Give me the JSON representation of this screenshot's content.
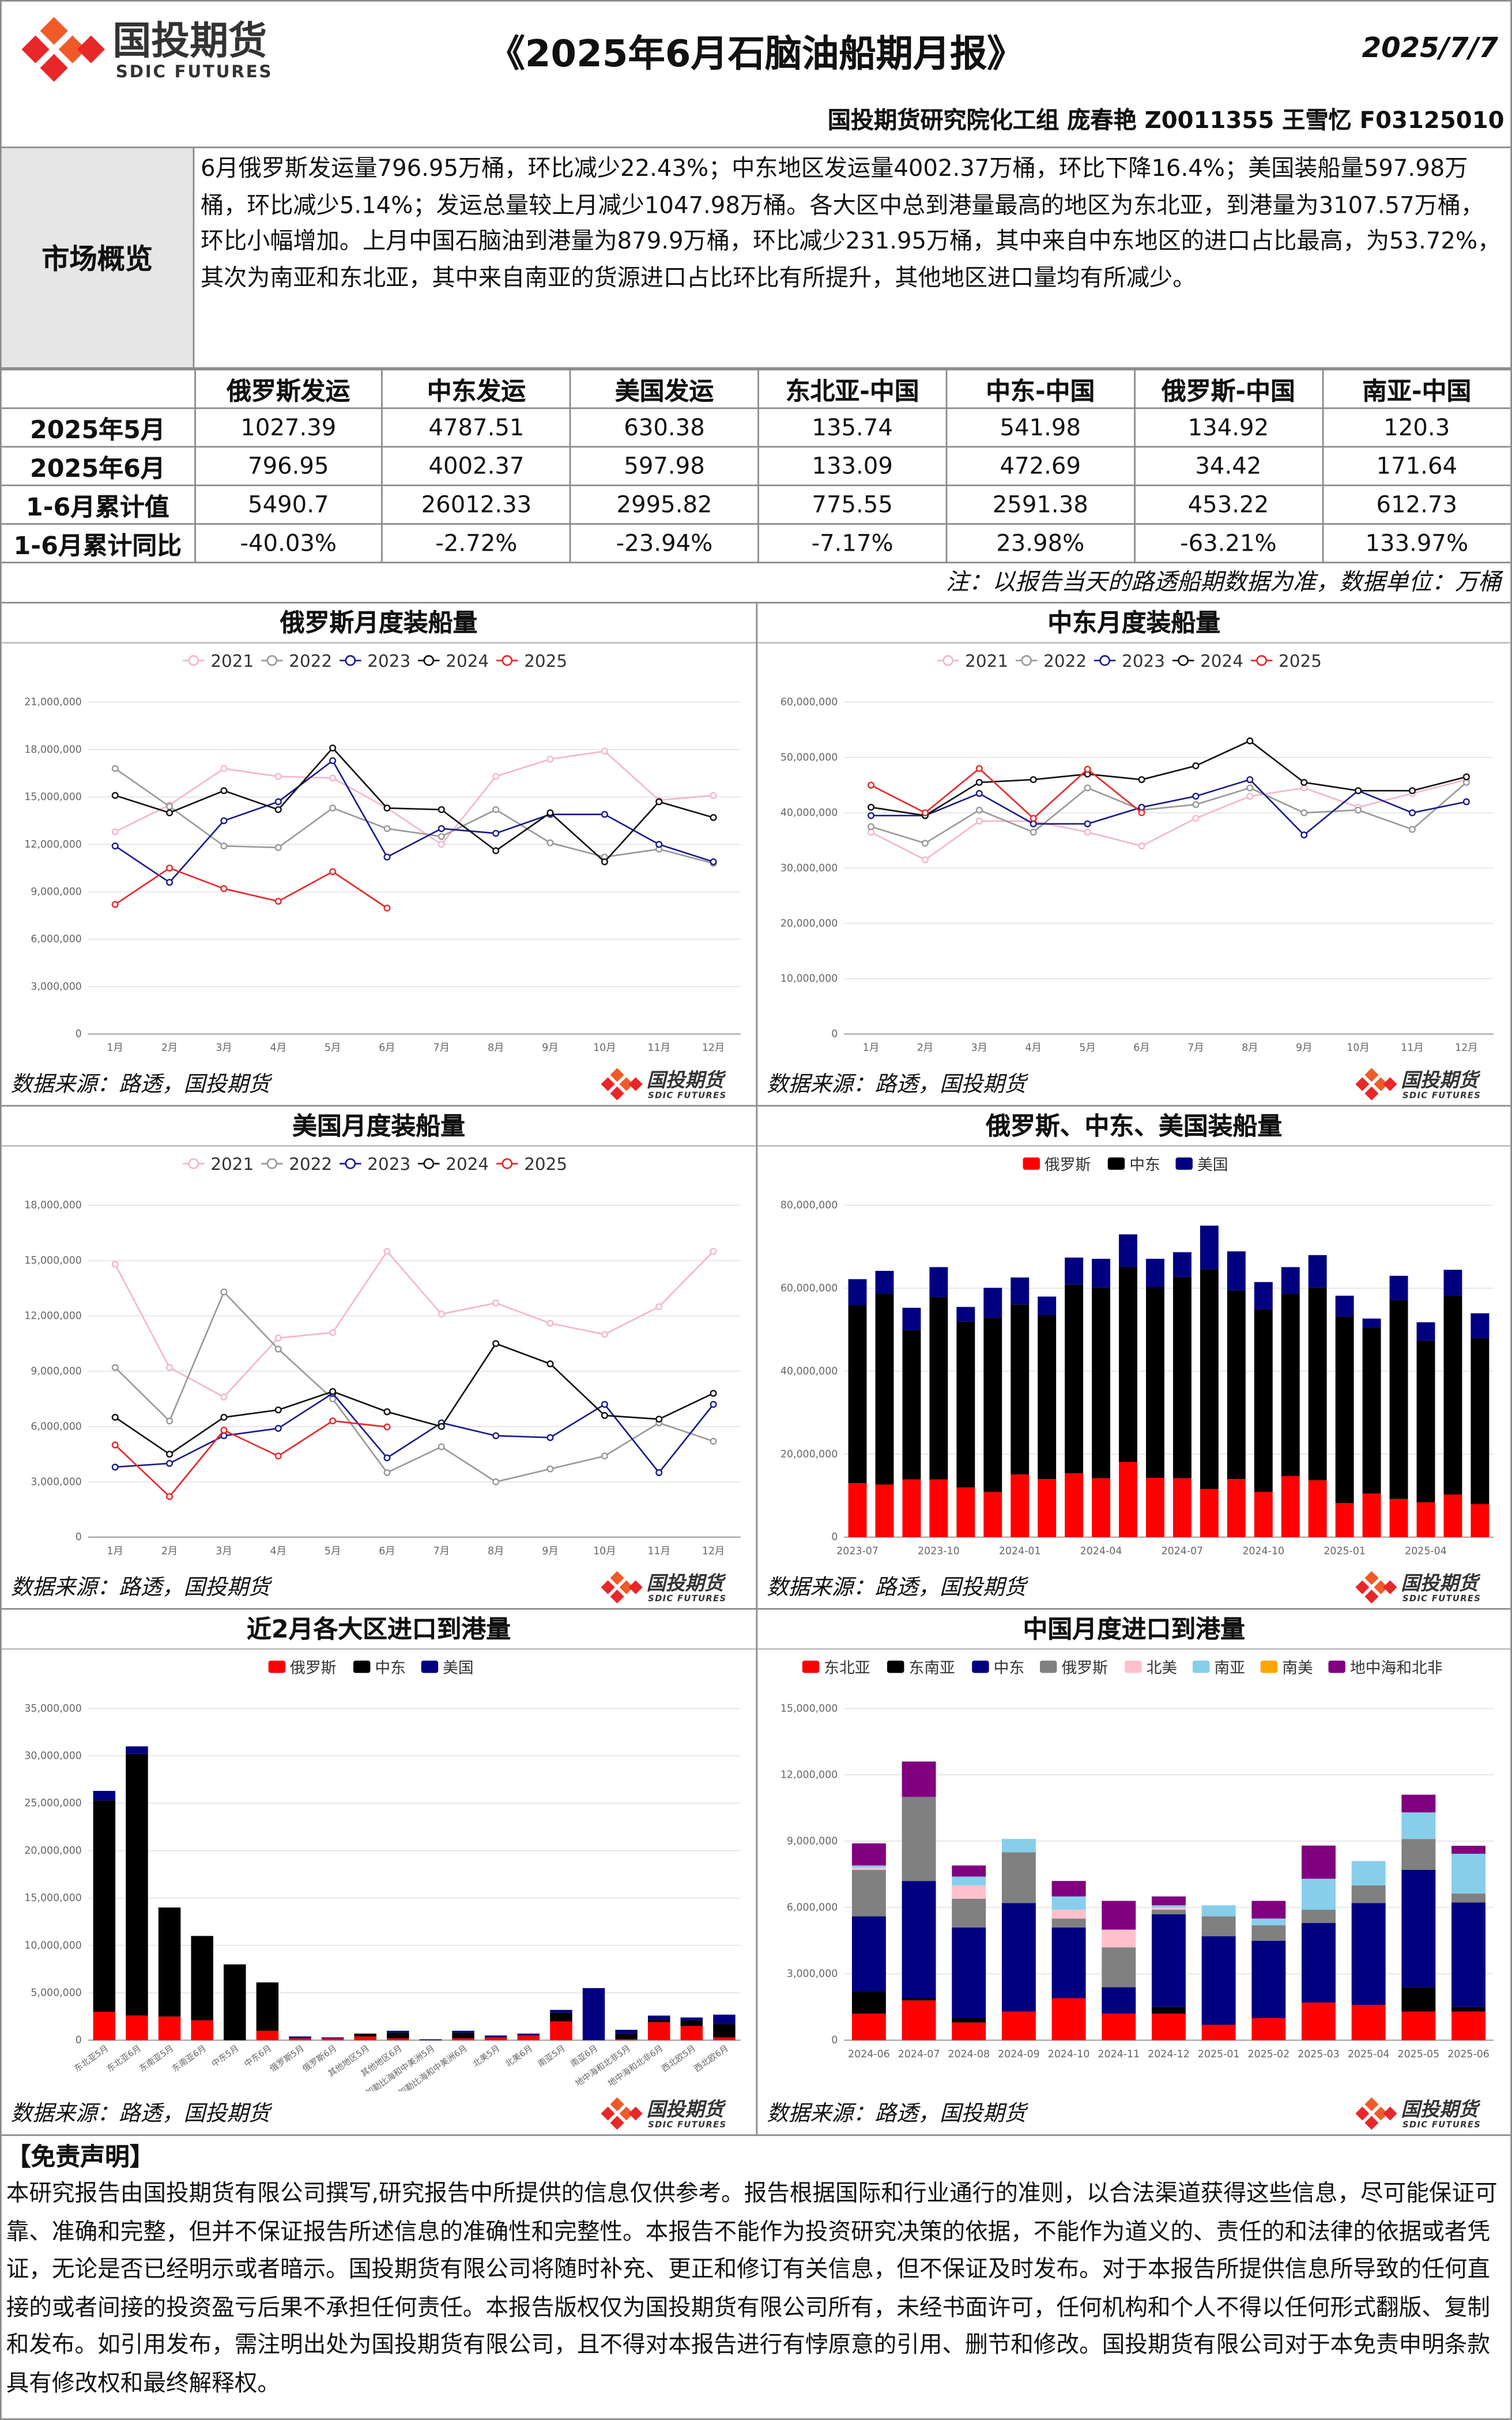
{
  "header": {
    "title": "《2025年6月石脑油船期月报》",
    "date": "2025/7/7",
    "author": "国投期货研究院化工组 庞春艳 Z0011355 王雪忆 F03125010"
  },
  "logo": {
    "name": "国投期货",
    "en": "SDIC FUTURES"
  },
  "summary": {
    "label": "市场概览",
    "text": "6月俄罗斯发运量796.95万桶，环比减少22.43%；中东地区发运量4002.37万桶，环比下降16.4%；美国装船量597.98万桶，环比减少5.14%；发运总量较上月减少1047.98万桶。各大区中总到港量最高的地区为东北亚，到港量为3107.57万桶，环比小幅增加。上月中国石脑油到港量为879.9万桶，环比减少231.95万桶，其中来自中东地区的进口占比最高，为53.72%，其次为南亚和东北亚，其中来自南亚的货源进口占比环比有所提升，其他地区进口量均有所减少。"
  },
  "table": {
    "columns": [
      "俄罗斯发运",
      "中东发运",
      "美国发运",
      "东北亚-中国",
      "中东-中国",
      "俄罗斯-中国",
      "南亚-中国"
    ],
    "rows": [
      {
        "label": "2025年5月",
        "cells": [
          "1027.39",
          "4787.51",
          "630.38",
          "135.74",
          "541.98",
          "134.92",
          "120.3"
        ]
      },
      {
        "label": "2025年6月",
        "cells": [
          "796.95",
          "4002.37",
          "597.98",
          "133.09",
          "472.69",
          "34.42",
          "171.64"
        ]
      },
      {
        "label": "1-6月累计值",
        "cells": [
          "5490.7",
          "26012.33",
          "2995.82",
          "775.55",
          "2591.38",
          "453.22",
          "612.73"
        ]
      },
      {
        "label": "1-6月累计同比",
        "cells": [
          "-40.03%",
          "-2.72%",
          "-23.94%",
          "-7.17%",
          "23.98%",
          "-63.21%",
          "133.97%"
        ]
      }
    ]
  },
  "note": "注：以报告当天的路透船期数据为准，数据单位：万桶",
  "chart_data": [
    {
      "type": "line",
      "title": "俄罗斯月度装船量",
      "source": "数据来源：路透，国投期货",
      "grid": true,
      "categories": [
        "1月",
        "2月",
        "3月",
        "4月",
        "5月",
        "6月",
        "7月",
        "8月",
        "9月",
        "10月",
        "11月",
        "12月"
      ],
      "ylim": [
        0,
        21000000
      ],
      "yticks": [
        0,
        {
          "value": 3000000,
          "label": "3,000,000"
        },
        {
          "value": 6000000,
          "label": "6,000,000"
        },
        {
          "value": 9000000,
          "label": "9,000,000"
        },
        {
          "value": 12000000,
          "label": "12,000,000"
        },
        {
          "value": 15000000,
          "label": "15,000,000"
        },
        {
          "value": 18000000,
          "label": "18,000,000"
        },
        {
          "value": 21000000,
          "label": "21,000,000"
        }
      ],
      "series": [
        {
          "name": "2021",
          "color": "#f4b6c8",
          "values": [
            12800000,
            14500000,
            16800000,
            16300000,
            16200000,
            14300000,
            12000000,
            16300000,
            17400000,
            17900000,
            14800000,
            15100000
          ]
        },
        {
          "name": "2022",
          "color": "#999999",
          "values": [
            16800000,
            14400000,
            11900000,
            11800000,
            14300000,
            13000000,
            12500000,
            14200000,
            12100000,
            11200000,
            11700000,
            10800000
          ]
        },
        {
          "name": "2023",
          "color": "#1a1a8c",
          "values": [
            11900000,
            9600000,
            13500000,
            14700000,
            17300000,
            11200000,
            13000000,
            12700000,
            13900000,
            13900000,
            12000000,
            10900000
          ]
        },
        {
          "name": "2024",
          "color": "#111111",
          "values": [
            15100000,
            14000000,
            15400000,
            14200000,
            18100000,
            14300000,
            14200000,
            11600000,
            14000000,
            10900000,
            14700000,
            13700000
          ]
        },
        {
          "name": "2025",
          "color": "#e8272a",
          "values": [
            8200000,
            10500000,
            9200000,
            8400000,
            10273900,
            7969500,
            null,
            null,
            null,
            null,
            null,
            null
          ]
        }
      ]
    },
    {
      "type": "line",
      "title": "中东月度装船量",
      "source": "数据来源：路透，国投期货",
      "grid": true,
      "categories": [
        "1月",
        "2月",
        "3月",
        "4月",
        "5月",
        "6月",
        "7月",
        "8月",
        "9月",
        "10月",
        "11月",
        "12月"
      ],
      "ylim": [
        0,
        60000000
      ],
      "yticks": [
        0,
        {
          "value": 10000000,
          "label": "10,000,000"
        },
        {
          "value": 20000000,
          "label": "20,000,000"
        },
        {
          "value": 30000000,
          "label": "30,000,000"
        },
        {
          "value": 40000000,
          "label": "40,000,000"
        },
        {
          "value": 50000000,
          "label": "50,000,000"
        },
        {
          "value": 60000000,
          "label": "60,000,000"
        }
      ],
      "series": [
        {
          "name": "2021",
          "color": "#f4b6c8",
          "values": [
            36500000,
            31500000,
            38500000,
            38500000,
            36500000,
            34000000,
            39000000,
            43000000,
            44500000,
            41000000,
            43500000,
            46000000
          ]
        },
        {
          "name": "2022",
          "color": "#999999",
          "values": [
            37500000,
            34500000,
            40500000,
            36500000,
            44500000,
            40500000,
            41500000,
            44500000,
            40000000,
            40500000,
            37000000,
            45500000
          ]
        },
        {
          "name": "2023",
          "color": "#1a1a8c",
          "values": [
            39500000,
            39500000,
            43500000,
            38000000,
            38000000,
            41000000,
            43000000,
            46000000,
            36000000,
            44000000,
            40000000,
            42000000
          ]
        },
        {
          "name": "2024",
          "color": "#111111",
          "values": [
            41000000,
            39500000,
            45500000,
            46000000,
            47000000,
            46000000,
            48500000,
            53000000,
            45500000,
            44000000,
            44000000,
            46500000
          ]
        },
        {
          "name": "2025",
          "color": "#e8272a",
          "values": [
            45000000,
            40000000,
            48000000,
            39000000,
            47875100,
            40023700,
            null,
            null,
            null,
            null,
            null,
            null
          ]
        }
      ]
    },
    {
      "type": "line",
      "title": "美国月度装船量",
      "source": "数据来源：路透，国投期货",
      "grid": true,
      "categories": [
        "1月",
        "2月",
        "3月",
        "4月",
        "5月",
        "6月",
        "7月",
        "8月",
        "9月",
        "10月",
        "11月",
        "12月"
      ],
      "ylim": [
        0,
        18000000
      ],
      "yticks": [
        0,
        {
          "value": 3000000,
          "label": "3,000,000"
        },
        {
          "value": 6000000,
          "label": "6,000,000"
        },
        {
          "value": 9000000,
          "label": "9,000,000"
        },
        {
          "value": 12000000,
          "label": "12,000,000"
        },
        {
          "value": 15000000,
          "label": "15,000,000"
        },
        {
          "value": 18000000,
          "label": "18,000,000"
        }
      ],
      "series": [
        {
          "name": "2021",
          "color": "#f4b6c8",
          "values": [
            14800000,
            9200000,
            7600000,
            10800000,
            11100000,
            15500000,
            12100000,
            12700000,
            11600000,
            11000000,
            12500000,
            15500000
          ]
        },
        {
          "name": "2022",
          "color": "#999999",
          "values": [
            9200000,
            6300000,
            13300000,
            10200000,
            7500000,
            3500000,
            4900000,
            3000000,
            3700000,
            4400000,
            6200000,
            5200000
          ]
        },
        {
          "name": "2023",
          "color": "#1a1a8c",
          "values": [
            3800000,
            4000000,
            5500000,
            5900000,
            7800000,
            4300000,
            6200000,
            5500000,
            5400000,
            7200000,
            3500000,
            7200000
          ]
        },
        {
          "name": "2024",
          "color": "#111111",
          "values": [
            6500000,
            4500000,
            6500000,
            6900000,
            7900000,
            6800000,
            6000000,
            10500000,
            9400000,
            6600000,
            6400000,
            7800000
          ]
        },
        {
          "name": "2025",
          "color": "#e8272a",
          "values": [
            5000000,
            2200000,
            5800000,
            4400000,
            6303800,
            5979800,
            null,
            null,
            null,
            null,
            null,
            null
          ]
        }
      ]
    },
    {
      "type": "bar",
      "title": "俄罗斯、中东、美国装船量",
      "source": "数据来源：路透，国投期货",
      "grid": true,
      "stacked": true,
      "categories": [
        "2023-07",
        null,
        null,
        "2023-10",
        null,
        null,
        "2024-01",
        null,
        null,
        "2024-04",
        null,
        null,
        "2024-07",
        null,
        null,
        "2024-10",
        null,
        null,
        "2025-01",
        null,
        null,
        "2025-04",
        null,
        null
      ],
      "ylim": [
        0,
        80000000
      ],
      "yticks": [
        0,
        {
          "value": 20000000,
          "label": "20,000,000"
        },
        {
          "value": 40000000,
          "label": "40,000,000"
        },
        {
          "value": 60000000,
          "label": "60,000,000"
        },
        {
          "value": 80000000,
          "label": "80,000,000"
        }
      ],
      "series": [
        {
          "name": "俄罗斯",
          "color": "#ff0000",
          "values": [
            13000000,
            12700000,
            13900000,
            13900000,
            12000000,
            10900000,
            15100000,
            14000000,
            15400000,
            14200000,
            18100000,
            14300000,
            14200000,
            11600000,
            14000000,
            10900000,
            14700000,
            13700000,
            8200000,
            10500000,
            9200000,
            8400000,
            10273900,
            7969500
          ]
        },
        {
          "name": "中东",
          "color": "#000000",
          "values": [
            43000000,
            46000000,
            36000000,
            44000000,
            40000000,
            42000000,
            41000000,
            39500000,
            45500000,
            46000000,
            47000000,
            46000000,
            48500000,
            53000000,
            45500000,
            44000000,
            44000000,
            46500000,
            45000000,
            40000000,
            48000000,
            39000000,
            47875100,
            40023700
          ]
        },
        {
          "name": "美国",
          "color": "#000080",
          "values": [
            6200000,
            5500000,
            5400000,
            7200000,
            3500000,
            7200000,
            6500000,
            4500000,
            6500000,
            6900000,
            7900000,
            6800000,
            6000000,
            10500000,
            9400000,
            6600000,
            6400000,
            7800000,
            5000000,
            2200000,
            5800000,
            4400000,
            6303800,
            5979800
          ]
        }
      ]
    },
    {
      "type": "bar",
      "title": "近2月各大区进口到港量",
      "source": "数据来源：路透，国投期货",
      "grid": true,
      "stacked": true,
      "categories": [
        "东北亚5月",
        "东北亚6月",
        "东南亚5月",
        "东南亚6月",
        "中东5月",
        "中东6月",
        "俄罗斯5月",
        "俄罗斯6月",
        "其他地区5月",
        "其他地区6月",
        "加勒比海和中美洲5月",
        "加勒比海和中美洲6月",
        "北美5月",
        "北美6月",
        "南亚5月",
        "南亚6月",
        "地中海和北非5月",
        "地中海和北非6月",
        "西北欧5月",
        "西北欧6月"
      ],
      "ylim": [
        0,
        35000000
      ],
      "yticks": [
        0,
        {
          "value": 5000000,
          "label": "5,000,000"
        },
        {
          "value": 10000000,
          "label": "10,000,000"
        },
        {
          "value": 15000000,
          "label": "15,000,000"
        },
        {
          "value": 20000000,
          "label": "20,000,000"
        },
        {
          "value": 25000000,
          "label": "25,000,000"
        },
        {
          "value": 30000000,
          "label": "30,000,000"
        },
        {
          "value": 35000000,
          "label": "35,000,000"
        }
      ],
      "series": [
        {
          "name": "俄罗斯",
          "color": "#ff0000",
          "values": [
            3000000,
            2600000,
            2500000,
            2100000,
            0,
            1000000,
            200000,
            200000,
            400000,
            200000,
            0,
            200000,
            300000,
            500000,
            2000000,
            0,
            100000,
            1900000,
            1500000,
            300000
          ]
        },
        {
          "name": "中东",
          "color": "#000000",
          "values": [
            22300000,
            27600000,
            11500000,
            8900000,
            8000000,
            5100000,
            0,
            0,
            300000,
            600000,
            0,
            600000,
            0,
            0,
            900000,
            0,
            600000,
            300000,
            600000,
            1400000
          ]
        },
        {
          "name": "美国",
          "color": "#000080",
          "values": [
            1000000,
            800000,
            0,
            0,
            0,
            0,
            200000,
            100000,
            0,
            200000,
            100000,
            200000,
            200000,
            200000,
            300000,
            5500000,
            400000,
            400000,
            300000,
            1000000
          ]
        }
      ]
    },
    {
      "type": "bar",
      "title": "中国月度进口到港量",
      "source": "数据来源：路透，国投期货",
      "grid": true,
      "stacked": true,
      "categories": [
        "2024-06",
        "2024-07",
        "2024-08",
        "2024-09",
        "2024-10",
        "2024-11",
        "2024-12",
        "2025-01",
        "2025-02",
        "2025-03",
        "2025-04",
        "2025-05",
        "2025-06"
      ],
      "ylim": [
        0,
        15000000
      ],
      "yticks": [
        0,
        {
          "value": 3000000,
          "label": "3,000,000"
        },
        {
          "value": 6000000,
          "label": "6,000,000"
        },
        {
          "value": 9000000,
          "label": "9,000,000"
        },
        {
          "value": 12000000,
          "label": "12,000,000"
        },
        {
          "value": 15000000,
          "label": "15,000,000"
        }
      ],
      "series": [
        {
          "name": "东北亚",
          "color": "#ff0000",
          "values": [
            1200000,
            1800000,
            800000,
            1300000,
            1900000,
            1200000,
            1200000,
            700000,
            1000000,
            1700000,
            1600000,
            1300000,
            1300000
          ]
        },
        {
          "name": "东南亚",
          "color": "#000000",
          "values": [
            1000000,
            100000,
            200000,
            0,
            0,
            0,
            300000,
            0,
            0,
            0,
            0,
            1100000,
            200000
          ]
        },
        {
          "name": "中东",
          "color": "#000080",
          "values": [
            3400000,
            5300000,
            4100000,
            4900000,
            3200000,
            1200000,
            4200000,
            4000000,
            3500000,
            3600000,
            4600000,
            5300000,
            4730000
          ]
        },
        {
          "name": "俄罗斯",
          "color": "#808080",
          "values": [
            2100000,
            3800000,
            1300000,
            2300000,
            400000,
            1800000,
            200000,
            900000,
            700000,
            600000,
            800000,
            1400000,
            400000
          ]
        },
        {
          "name": "北美",
          "color": "#ffc0cb",
          "values": [
            100000,
            0,
            600000,
            0,
            400000,
            800000,
            100000,
            0,
            0,
            0,
            0,
            0,
            0
          ]
        },
        {
          "name": "南亚",
          "color": "#87ceeb",
          "values": [
            100000,
            0,
            400000,
            600000,
            600000,
            0,
            100000,
            500000,
            300000,
            1400000,
            1100000,
            1200000,
            1800000
          ]
        },
        {
          "name": "南美",
          "color": "#ffa500",
          "values": [
            0,
            0,
            0,
            0,
            0,
            0,
            0,
            0,
            0,
            0,
            0,
            0,
            0
          ]
        },
        {
          "name": "地中海和北非",
          "color": "#800080",
          "values": [
            1000000,
            1600000,
            500000,
            0,
            700000,
            1300000,
            400000,
            0,
            800000,
            1500000,
            0,
            800000,
            360000
          ]
        }
      ]
    }
  ],
  "disclaimer": {
    "title": "【免责声明】",
    "text": "本研究报告由国投期货有限公司撰写,研究报告中所提供的信息仅供参考。报告根据国际和行业通行的准则，以合法渠道获得这些信息，尽可能保证可靠、准确和完整，但并不保证报告所述信息的准确性和完整性。本报告不能作为投资研究决策的依据，不能作为道义的、责任的和法律的依据或者凭证，无论是否已经明示或者暗示。国投期货有限公司将随时补充、更正和修订有关信息，但不保证及时发布。对于本报告所提供信息所导致的任何直接的或者间接的投资盈亏后果不承担任何责任。本报告版权仅为国投期货有限公司所有，未经书面许可，任何机构和个人不得以任何形式翻版、复制和发布。如引用发布，需注明出处为国投期货有限公司，且不得对本报告进行有悖原意的引用、删节和修改。国投期货有限公司对于本免责申明条款具有修改权和最终解释权。"
  }
}
